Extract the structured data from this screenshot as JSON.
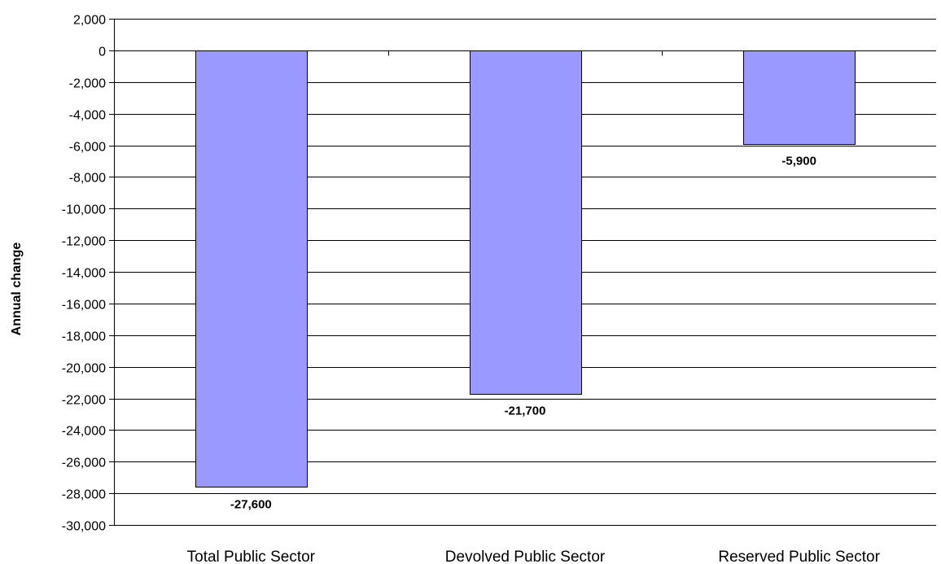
{
  "chart_data": {
    "type": "bar",
    "categories": [
      "Total Public Sector",
      "Devolved Public Sector",
      "Reserved Public Sector"
    ],
    "values": [
      -27600,
      -21700,
      -5900
    ],
    "data_labels": [
      "-27,600",
      "-21,700",
      "-5,900"
    ],
    "title": "",
    "xlabel": "",
    "ylabel": "Annual change",
    "ylim": [
      -30000,
      2000
    ],
    "ytick_step": 2000,
    "yticks": [
      "2,000",
      "0",
      "-2,000",
      "-4,000",
      "-6,000",
      "-8,000",
      "-10,000",
      "-12,000",
      "-14,000",
      "-16,000",
      "-18,000",
      "-20,000",
      "-22,000",
      "-24,000",
      "-26,000",
      "-28,000",
      "-30,000"
    ],
    "grid": true,
    "legend": "none",
    "colors": {
      "bar_fill": "#9999ff",
      "bar_stroke": "#000000",
      "grid": "#000000"
    }
  }
}
